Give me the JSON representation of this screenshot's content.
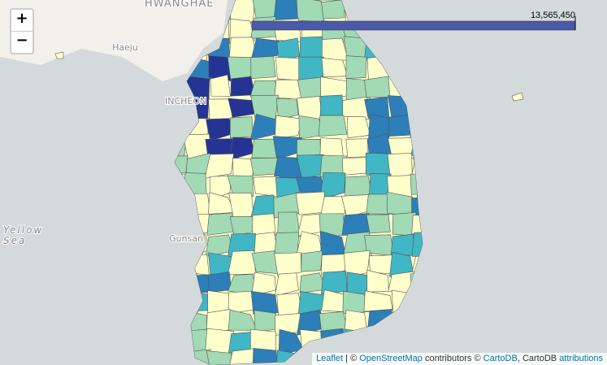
{
  "map": {
    "labels": [
      {
        "text": "HWANGHAE"
      },
      {
        "text": "Haeju"
      },
      {
        "text": "INCHEON"
      },
      {
        "text": "Gunsan"
      },
      {
        "text": "Yellow"
      },
      {
        "text": "Sea"
      }
    ],
    "legend": {
      "ticks": [
        {
          "value": 13565450,
          "label": "13,565,450"
        }
      ]
    }
  },
  "controls": {
    "zoom_in": "+",
    "zoom_out": "−"
  },
  "attribution": {
    "leaflet": "Leaflet",
    "sep": " | © ",
    "osm": "OpenStreetMap",
    "contrib": " contributors © ",
    "cartodb": "CartoDB",
    "cartodb2": ", CartoDB ",
    "attributions": "attributions"
  }
}
